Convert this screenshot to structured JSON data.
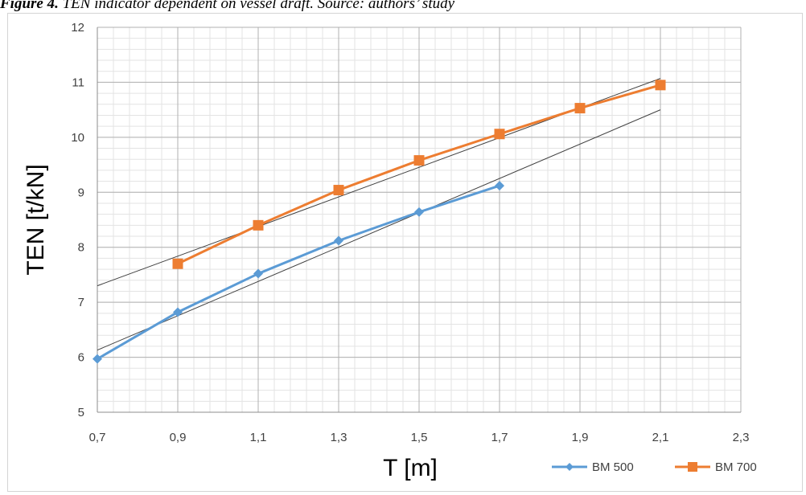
{
  "caption": {
    "label": "Figure 4.",
    "text": " TEN indicator dependent on vessel draft. Source: authors’ study"
  },
  "chart_data": {
    "type": "line",
    "xlabel": "T [m]",
    "ylabel": "TEN [t/kN]",
    "xlim": [
      0.7,
      2.3
    ],
    "ylim": [
      5,
      12
    ],
    "x_ticks": [
      "0,7",
      "0,9",
      "1,1",
      "1,3",
      "1,5",
      "1,7",
      "1,9",
      "2,1",
      "2,3"
    ],
    "y_ticks": [
      "5",
      "6",
      "7",
      "8",
      "9",
      "10",
      "11",
      "12"
    ],
    "grid": true,
    "minor_grid": true,
    "legend_position": "bottom-right",
    "series": [
      {
        "name": "BM 500",
        "color": "#5b9bd5",
        "marker": "diamond",
        "x": [
          0.7,
          0.9,
          1.1,
          1.3,
          1.5,
          1.7
        ],
        "y": [
          5.97,
          6.82,
          7.52,
          8.12,
          8.64,
          9.12
        ]
      },
      {
        "name": "BM 700",
        "color": "#ed7d31",
        "marker": "square",
        "x": [
          0.9,
          1.1,
          1.3,
          1.5,
          1.7,
          1.9,
          2.1
        ],
        "y": [
          7.7,
          8.4,
          9.04,
          9.58,
          10.06,
          10.53,
          10.95
        ]
      }
    ],
    "trendlines": [
      {
        "for": "BM 500",
        "color": "#404040",
        "x": [
          0.7,
          2.1
        ],
        "y": [
          6.13,
          10.5
        ]
      },
      {
        "for": "BM 700",
        "color": "#404040",
        "x": [
          0.7,
          2.1
        ],
        "y": [
          7.3,
          11.07
        ]
      }
    ]
  }
}
